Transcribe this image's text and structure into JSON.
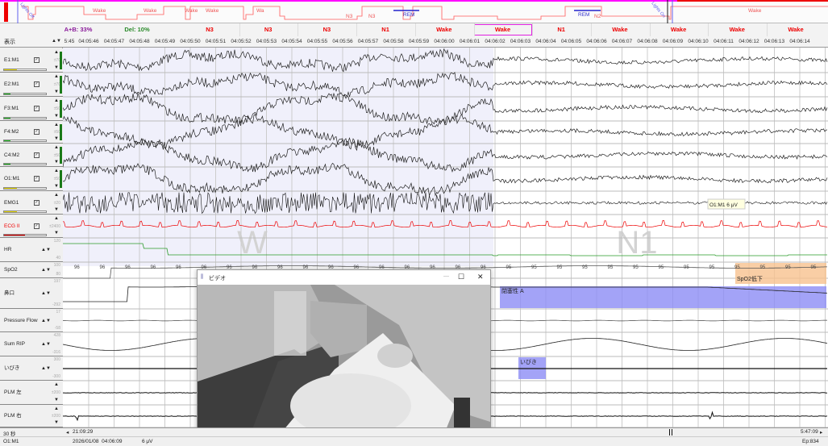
{
  "hypnogram": {
    "labels": [
      "Wake",
      "Wake",
      "Wake",
      "Wake",
      "Wa",
      "N3",
      "N3",
      "REM",
      "REM",
      "N2",
      "Wake"
    ],
    "lights_off": "Lights Off",
    "lights_on": "Lights On",
    "line_color": "#ff5a5a",
    "rem_color": "#2222cc"
  },
  "stage_row": {
    "arousal": "A+B: 33%",
    "delta": "Del: 10%",
    "epochs": [
      "N3",
      "N3",
      "N3",
      "N1",
      "Wake",
      "Wake",
      "N1",
      "Wake",
      "Wake",
      "Wake",
      "Wake"
    ],
    "selected_epoch_index": 5
  },
  "time_row": {
    "display_label": "表示",
    "ticks": [
      "5:45",
      "04:05:46",
      "04:05:47",
      "04:05:48",
      "04:05:49",
      "04:05:50",
      "04:05:51",
      "04:05:52",
      "04:05:53",
      "04:05:54",
      "04:05:55",
      "04:05:56",
      "04:05:57",
      "04:05:58",
      "04:05:59",
      "04:06:00",
      "04:06:01",
      "04:06:02",
      "04:06:03",
      "04:06:04",
      "04:06:05",
      "04:06:06",
      "04:06:07",
      "04:06:08",
      "04:06:09",
      "04:06:10",
      "04:06:11",
      "04:06:12",
      "04:06:13",
      "04:06:14"
    ]
  },
  "channels": [
    {
      "label": "E1:M1",
      "scale": "±70",
      "checked": true,
      "color": "#222",
      "level_color": "#e8d800",
      "level": 0.3
    },
    {
      "label": "E2:M1",
      "scale": "±70",
      "checked": true,
      "color": "#222",
      "level_color": "#22bb22",
      "level": 0.15
    },
    {
      "label": "F3:M1",
      "scale": "±50",
      "checked": true,
      "color": "#222",
      "level_color": "#22bb22",
      "level": 0.15
    },
    {
      "label": "F4:M2",
      "scale": "±50",
      "checked": true,
      "color": "#222",
      "level_color": "#22bb22",
      "level": 0.15
    },
    {
      "label": "C4:M2",
      "scale": "±50",
      "checked": true,
      "color": "#222",
      "level_color": "#22bb22",
      "level": 0.15
    },
    {
      "label": "O1:M1",
      "scale": "±50",
      "checked": true,
      "color": "#222",
      "level_color": "#e8d800",
      "level": 0.3
    },
    {
      "label": "EMG1",
      "scale": "±20",
      "checked": true,
      "color": "#111",
      "level_color": "#e8d800",
      "level": 0.3
    },
    {
      "label": "ECG II",
      "scale": "±2400",
      "checked": true,
      "color": "#e00",
      "level_color": "#e00",
      "level": 0.5
    },
    {
      "label": "HR",
      "scale_top": "120",
      "scale_bottom": "40",
      "color": "#2a9a2a"
    },
    {
      "label": "SpO2",
      "scale_top": "100",
      "scale_bottom": "80",
      "color": "#222"
    },
    {
      "label": "鼻口",
      "scale_top": "197",
      "scale_bottom": "-292",
      "color": "#222"
    },
    {
      "label": "Pressure Flow",
      "scale_top": "17",
      "scale_bottom": "-58",
      "color": "#222"
    },
    {
      "label": "Sum RIP",
      "scale_top": "428",
      "scale_bottom": "-316",
      "color": "#222"
    },
    {
      "label": "いびき",
      "scale_top": "300",
      "scale_bottom": "-300",
      "color": "#222"
    },
    {
      "label": "PLM 左",
      "scale": "±200",
      "color": "#222"
    },
    {
      "label": "PLM 右",
      "scale": "±200",
      "color": "#222"
    }
  ],
  "spo2_values": {
    "left": "96",
    "right": "95"
  },
  "stage_watermarks": [
    "W",
    "N1"
  ],
  "annotations": {
    "obstructive": "閉塞性 A",
    "spo2_drop": "SpO2低下",
    "snore": "いびき",
    "tooltip": "O1:M1  6 μV",
    "obstructive_color": "#8c8cf5",
    "spo2_color": "#f8c28e"
  },
  "video": {
    "title": "ビデオ",
    "minimize": "—",
    "maximize": "☐",
    "close": "✕"
  },
  "bottom": {
    "page_length": "30 秒",
    "start_time": "21:09:29",
    "end_time": "5:47:09",
    "channel": "O1:M1",
    "datetime": "2026/01/08  04:06:09",
    "value": "6 μV",
    "epoch": "Ep:834"
  }
}
